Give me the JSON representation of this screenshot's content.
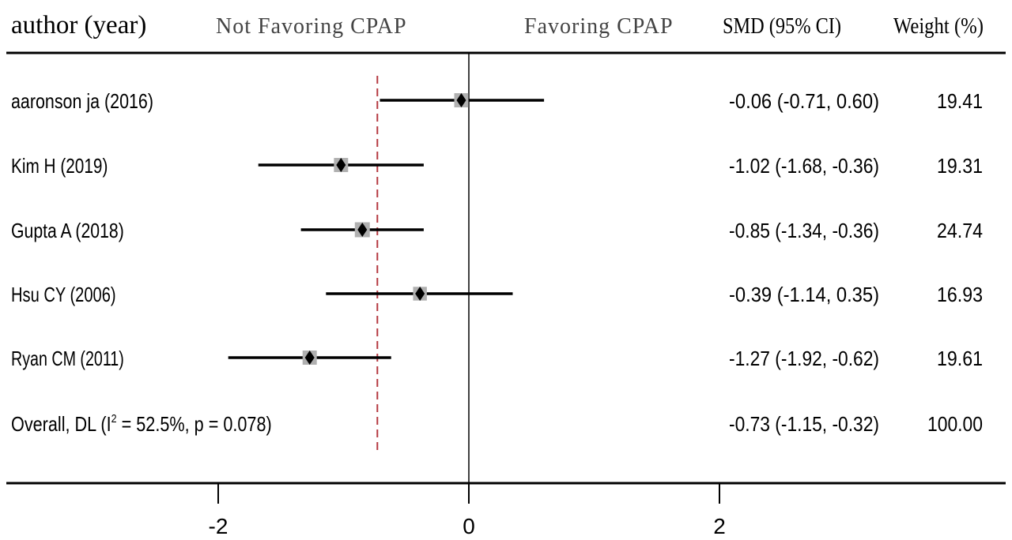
{
  "header": {
    "study_col": "author (year)",
    "left_favor": "Not Favoring CPAP",
    "right_favor": "Favoring CPAP",
    "effect_col": "SMD (95% CI)",
    "weight_col": "Weight (%)"
  },
  "chart_data": {
    "type": "forest",
    "title": "",
    "xlabel": "",
    "ylabel": "",
    "xlim": [
      -3.7,
      4.37
    ],
    "xticks": [
      -2,
      0,
      2
    ],
    "xtick_labels": [
      "-2",
      "0",
      "2"
    ],
    "null_line": 0,
    "overall_line": -0.73,
    "studies": [
      {
        "label": "aaronson ja (2016)",
        "smd": -0.06,
        "lo": -0.71,
        "hi": 0.6,
        "ci_text": "-0.06 (-0.71, 0.60)",
        "weight": 19.41,
        "weight_text": "19.41"
      },
      {
        "label": "Kim H (2019)",
        "smd": -1.02,
        "lo": -1.68,
        "hi": -0.36,
        "ci_text": "-1.02 (-1.68, -0.36)",
        "weight": 19.31,
        "weight_text": "19.31"
      },
      {
        "label": "Gupta A (2018)",
        "smd": -0.85,
        "lo": -1.34,
        "hi": -0.36,
        "ci_text": "-0.85 (-1.34, -0.36)",
        "weight": 24.74,
        "weight_text": "24.74"
      },
      {
        "label": "Hsu CY (2006)",
        "smd": -0.39,
        "lo": -1.14,
        "hi": 0.35,
        "ci_text": "-0.39 (-1.14, 0.35)",
        "weight": 16.93,
        "weight_text": "16.93"
      },
      {
        "label": "Ryan CM (2011)",
        "smd": -1.27,
        "lo": -1.92,
        "hi": -0.62,
        "ci_text": "-1.27 (-1.92, -0.62)",
        "weight": 19.61,
        "weight_text": "19.61"
      }
    ],
    "overall": {
      "label_prefix": "Overall, DL (I",
      "label_sup": "2",
      "label_suffix": " = 52.5%, p = 0.078)",
      "smd": -0.73,
      "lo": -1.15,
      "hi": -0.32,
      "ci_text": "-0.73 (-1.15, -0.32)",
      "weight_text": "100.00"
    },
    "colors": {
      "line": "#000000",
      "marker_box": "#b0b0b0",
      "overall_line": "#b5383f"
    }
  }
}
